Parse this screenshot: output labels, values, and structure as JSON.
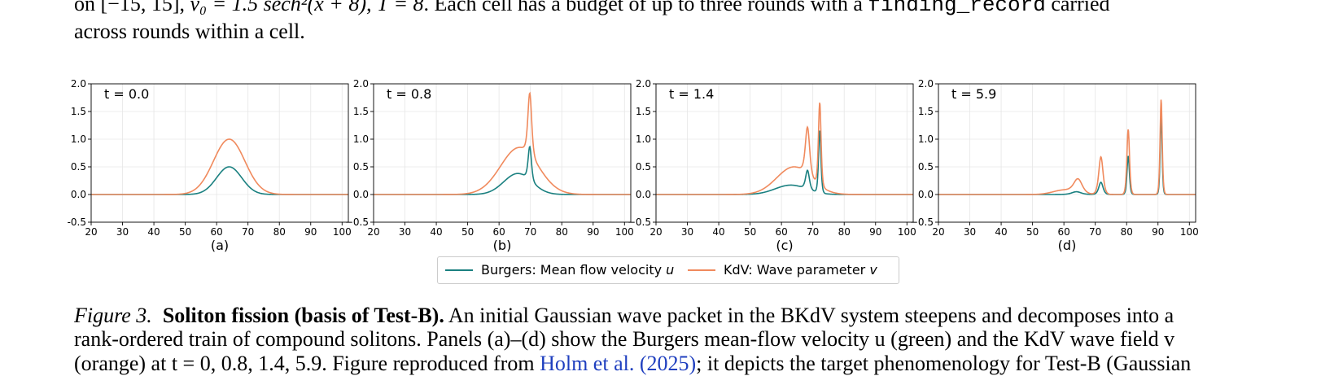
{
  "top_text": {
    "line1_a": "on [−15, 15], ",
    "line1_math": "v₀ = 1.5 sech²(x + 8), T = 8",
    "line1_b": ". Each cell has a budget of up to three rounds with a ",
    "line1_code": "finding_record",
    "line1_c": " carried",
    "line2": "across rounds within a cell."
  },
  "colors": {
    "burgers": "#1a8080",
    "kdv": "#f08a5d",
    "axis": "#000000"
  },
  "panels": [
    {
      "letter": "(a)",
      "time_label": "t = 0.0"
    },
    {
      "letter": "(b)",
      "time_label": "t = 0.8"
    },
    {
      "letter": "(c)",
      "time_label": "t = 1.4"
    },
    {
      "letter": "(d)",
      "time_label": "t = 5.9"
    }
  ],
  "axes": {
    "x_ticks": [
      "20",
      "30",
      "40",
      "50",
      "60",
      "70",
      "80",
      "90",
      "100"
    ],
    "y_ticks": [
      "2.0",
      "1.5",
      "1.0",
      "0.5",
      "0.0",
      "-0.5"
    ],
    "y_ticks_negative_styled": "−0.5"
  },
  "legend": {
    "burgers_label": "Burgers: Mean flow velocity ",
    "burgers_var": "u",
    "kdv_label": "KdV: Wave parameter ",
    "kdv_var": "v"
  },
  "caption": {
    "fig_label": "Figure 3.",
    "title": "Soliton fission (basis of Test-B).",
    "line1_rest": " An initial Gaussian wave packet in the BKdV system steepens and decomposes into a",
    "line2": "rank-ordered train of compound solitons. Panels (a)–(d) show the Burgers mean-flow velocity u (green) and the KdV wave field v",
    "line3_a": "(orange) at t = 0, 0.8, 1.4, 5.9. Figure reproduced from ",
    "line3_link": "Holm et al. (2025)",
    "line3_b": "; it depicts the target phenomenology for Test-B (Gaussian"
  },
  "chart_data": [
    {
      "type": "line",
      "title": "t = 0.0",
      "xlim": [
        20,
        102
      ],
      "ylim": [
        -0.5,
        2.0
      ],
      "xlabel": "(a)",
      "grid": true,
      "series": [
        {
          "name": "Burgers: Mean flow velocity u",
          "peaks": [
            {
              "x": 64,
              "y": 0.5,
              "w": 4.0
            }
          ]
        },
        {
          "name": "KdV: Wave parameter v",
          "peaks": [
            {
              "x": 64,
              "y": 1.0,
              "w": 5.0
            }
          ]
        }
      ]
    },
    {
      "type": "line",
      "title": "t = 0.8",
      "xlim": [
        20,
        102
      ],
      "ylim": [
        -0.5,
        2.0
      ],
      "xlabel": "(b)",
      "grid": true,
      "series": [
        {
          "name": "Burgers: Mean flow velocity u",
          "peaks": [
            {
              "x": 66,
              "y": 0.38,
              "w": 4.5
            },
            {
              "x": 69.8,
              "y": 0.6,
              "w": 0.7
            }
          ]
        },
        {
          "name": "KdV: Wave parameter v",
          "peaks": [
            {
              "x": 66.5,
              "y": 0.85,
              "w": 6.0
            },
            {
              "x": 69.8,
              "y": 1.1,
              "w": 0.8
            }
          ]
        }
      ]
    },
    {
      "type": "line",
      "title": "t = 1.4",
      "xlim": [
        20,
        102
      ],
      "ylim": [
        -0.5,
        2.0
      ],
      "xlabel": "(c)",
      "grid": true,
      "series": [
        {
          "name": "Burgers: Mean flow velocity u",
          "peaks": [
            {
              "x": 63,
              "y": 0.17,
              "w": 5.0
            },
            {
              "x": 68.3,
              "y": 0.34,
              "w": 0.8
            },
            {
              "x": 72.2,
              "y": 1.13,
              "w": 0.5
            }
          ]
        },
        {
          "name": "KdV: Wave parameter v",
          "peaks": [
            {
              "x": 64,
              "y": 0.5,
              "w": 5.5
            },
            {
              "x": 68.3,
              "y": 0.85,
              "w": 0.9
            },
            {
              "x": 72.2,
              "y": 1.5,
              "w": 0.55
            }
          ]
        }
      ]
    },
    {
      "type": "line",
      "title": "t = 5.9",
      "xlim": [
        20,
        102
      ],
      "ylim": [
        -0.5,
        2.0
      ],
      "xlabel": "(d)",
      "grid": true,
      "series": [
        {
          "name": "Burgers: Mean flow velocity u",
          "peaks": [
            {
              "x": 64,
              "y": 0.05,
              "w": 2.0
            },
            {
              "x": 71.8,
              "y": 0.22,
              "w": 0.9
            },
            {
              "x": 80.5,
              "y": 0.7,
              "w": 0.5
            },
            {
              "x": 91,
              "y": 1.47,
              "w": 0.4
            }
          ]
        },
        {
          "name": "KdV: Wave parameter v",
          "peaks": [
            {
              "x": 60,
              "y": 0.08,
              "w": 3.5
            },
            {
              "x": 64.5,
              "y": 0.25,
              "w": 1.8
            },
            {
              "x": 71.8,
              "y": 0.68,
              "w": 0.9
            },
            {
              "x": 80.5,
              "y": 1.18,
              "w": 0.55
            },
            {
              "x": 91,
              "y": 1.72,
              "w": 0.45
            }
          ]
        }
      ]
    }
  ]
}
